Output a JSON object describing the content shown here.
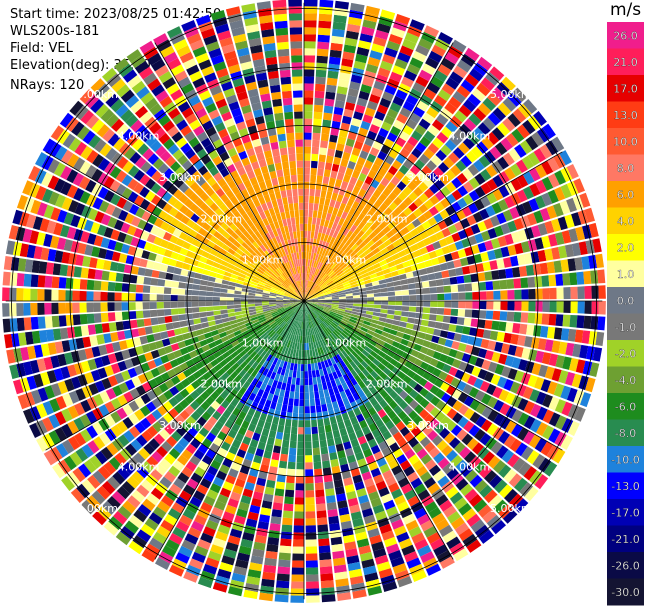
{
  "header": {
    "start_time": "Start time: 2023/08/25 01:42:50",
    "station": "WLS200s-181",
    "field": "Field: VEL",
    "elevation": "Elevation(deg): 35.30",
    "nrays": "NRays: 120"
  },
  "colorbar": {
    "unit": "m/s",
    "bins": [
      {
        "label": "26.0",
        "color": "#f01e8c"
      },
      {
        "label": "21.0",
        "color": "#ff1e5a"
      },
      {
        "label": "17.0",
        "color": "#e60000"
      },
      {
        "label": "13.0",
        "color": "#ff3c14"
      },
      {
        "label": "10.0",
        "color": "#ff5a32"
      },
      {
        "label": "8.0",
        "color": "#ff7864"
      },
      {
        "label": "6.0",
        "color": "#ffa000"
      },
      {
        "label": "4.0",
        "color": "#ffd200"
      },
      {
        "label": "2.0",
        "color": "#ffff00"
      },
      {
        "label": "1.0",
        "color": "#ffffa0"
      },
      {
        "label": "0.0",
        "color": "#6e7887"
      },
      {
        "label": "-1.0",
        "color": "#787878"
      },
      {
        "label": "-2.0",
        "color": "#a0d228"
      },
      {
        "label": "-4.0",
        "color": "#6ea032"
      },
      {
        "label": "-6.0",
        "color": "#1e8c1e"
      },
      {
        "label": "-8.0",
        "color": "#288c50"
      },
      {
        "label": "-10.0",
        "color": "#1e82dc"
      },
      {
        "label": "-13.0",
        "color": "#0000ff"
      },
      {
        "label": "-17.0",
        "color": "#0000b4"
      },
      {
        "label": "-21.0",
        "color": "#000080"
      },
      {
        "label": "-26.0",
        "color": "#0a0a46"
      },
      {
        "label": "-30.0",
        "color": "#141432"
      }
    ]
  },
  "chart_data": {
    "type": "heatmap",
    "projection": "polar PPI",
    "field": "VEL",
    "unit": "m/s",
    "nrays": 120,
    "range_rings_km": [
      1,
      2,
      3,
      4,
      5
    ],
    "ring_labels": [
      "1.00km",
      "2.00km",
      "3.00km",
      "4.00km",
      "5.00km"
    ],
    "max_range_km": 5.1,
    "clean_range_km": 2.9,
    "velocity_pattern": {
      "north_sector": 8,
      "east_west_axis": 0,
      "south_sector": -7,
      "south_center_core": -10
    }
  }
}
